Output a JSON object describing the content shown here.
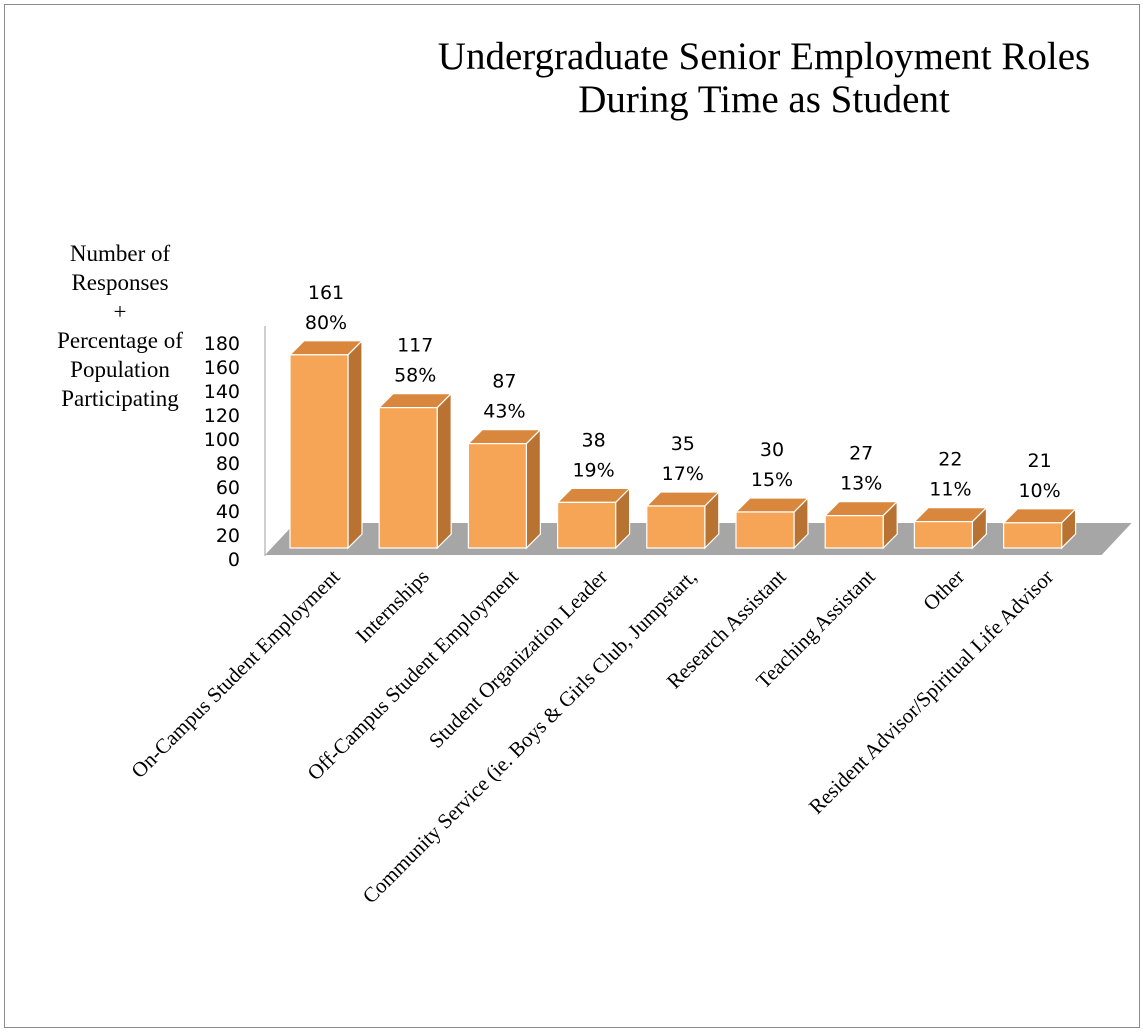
{
  "chart_data": {
    "type": "bar",
    "title": [
      "Undergraduate Senior Employment Roles",
      "During Time as Student"
    ],
    "ylabel": [
      "Number of",
      "Responses",
      "+",
      "Percentage of",
      "Population",
      "Participating"
    ],
    "xlabel": "",
    "ylim": [
      0,
      180
    ],
    "yticks": [
      0,
      20,
      40,
      60,
      80,
      100,
      120,
      140,
      160,
      180
    ],
    "style": "3d-column",
    "grid": false,
    "legend": "none",
    "colors": {
      "bar_front": "#F6A556",
      "bar_side": "#B87333",
      "bar_top": "#D9873D",
      "floor": "#A6A6A6"
    },
    "categories": [
      "On-Campus Student Employment",
      "Internships",
      "Off-Campus Student Employment",
      "Student Organization Leader",
      "Community Service (ie. Boys & Girls Club, Jumpstart,",
      "Research Assistant",
      "Teaching Assistant",
      "Other",
      "Resident Advisor/Spiritual Life Advisor"
    ],
    "values": [
      161,
      117,
      87,
      38,
      35,
      30,
      27,
      22,
      21
    ],
    "percent_labels": [
      "80%",
      "58%",
      "43%",
      "19%",
      "17%",
      "15%",
      "13%",
      "11%",
      "10%"
    ]
  }
}
